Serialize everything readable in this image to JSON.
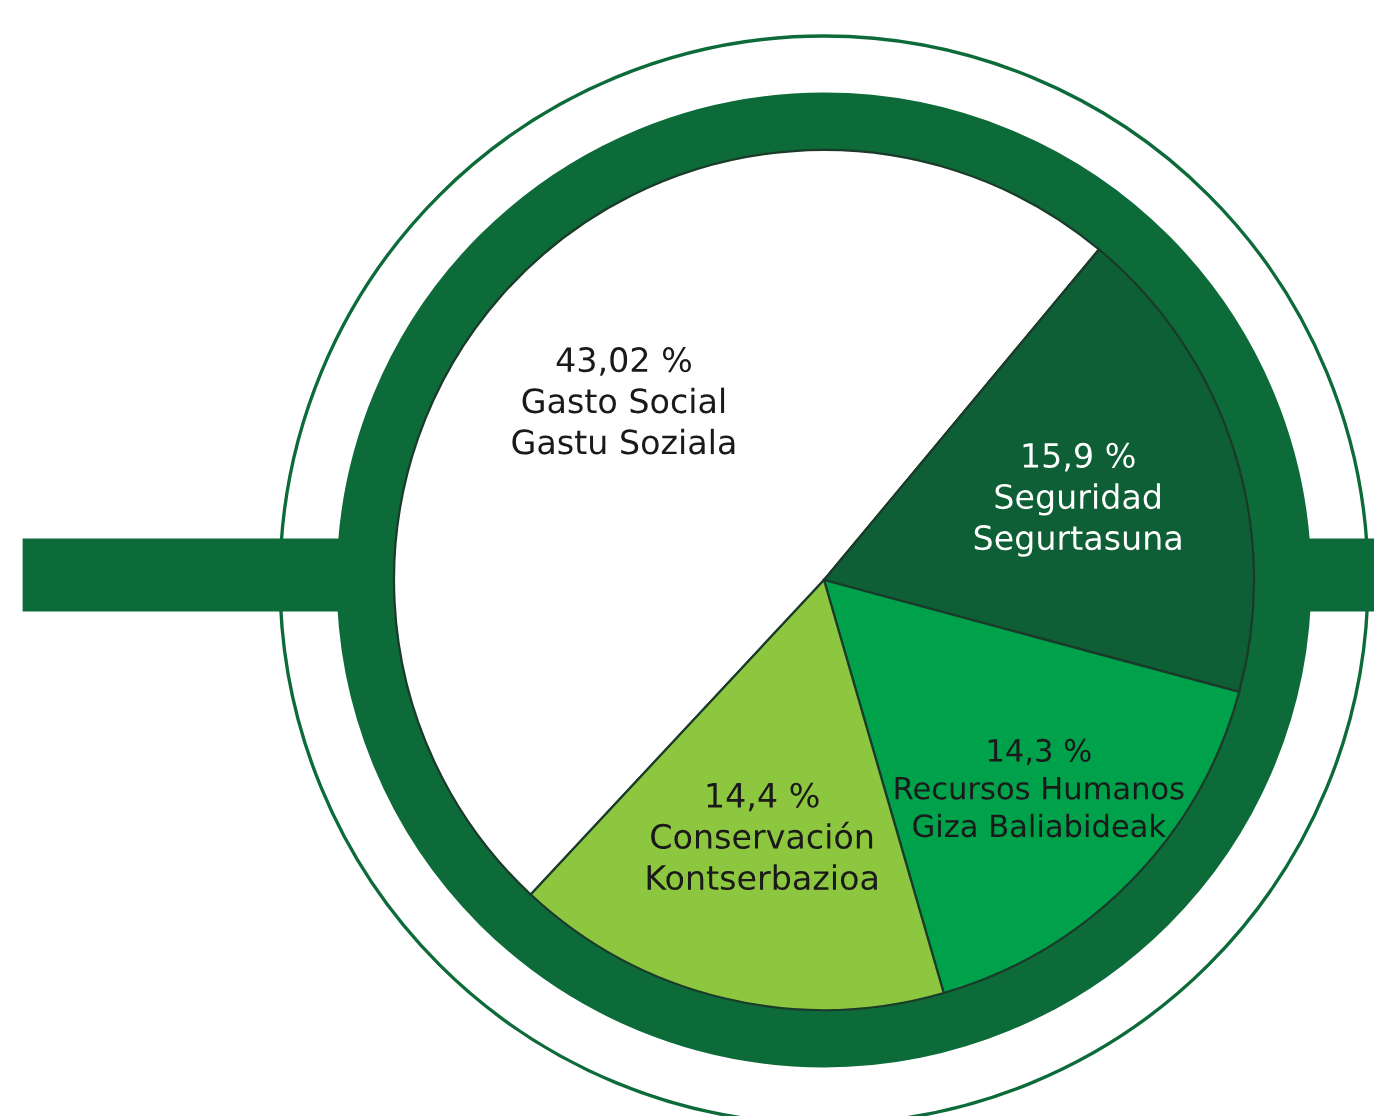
{
  "chart_data": {
    "type": "pie",
    "categories": [
      "Gasto Social\nGastu Soziala",
      "Seguridad\nSegurtasuna",
      "Recursos Humanos\nGiza Baliabideak",
      "Conservación\nKontserbazioa"
    ],
    "values": [
      43.02,
      15.9,
      14.3,
      14.4
    ],
    "value_labels": [
      "43,02 %",
      "15,9 %",
      "14,3 %",
      "14,4 %"
    ],
    "colors": [
      "#ffffff",
      "#0e5f35",
      "#00a14b",
      "#8dc63f"
    ],
    "legend": false
  }
}
